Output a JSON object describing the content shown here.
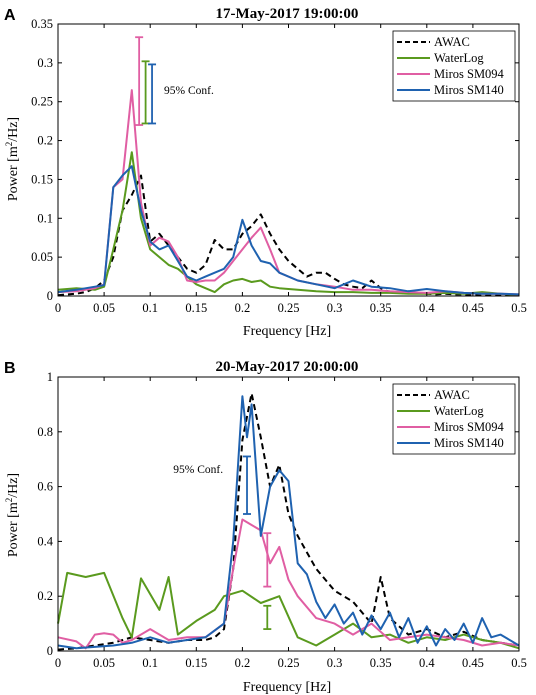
{
  "chart_data": [
    {
      "panel_label": "A",
      "type": "line",
      "title": "17-May-2017 19:00:00",
      "xlabel": "Frequency [Hz]",
      "ylabel_main": "Power [m",
      "ylabel_sup": "2",
      "ylabel_end": "/Hz]",
      "xlim": [
        0,
        0.5
      ],
      "ylim": [
        0,
        0.35
      ],
      "xticks": [
        "0",
        "0.05",
        "0.1",
        "0.15",
        "0.2",
        "0.25",
        "0.3",
        "0.35",
        "0.4",
        "0.45",
        "0.5"
      ],
      "yticks": [
        "0",
        "0.05",
        "0.1",
        "0.15",
        "0.2",
        "0.25",
        "0.3",
        "0.35"
      ],
      "legend": "top-right",
      "conf_text": "95% Conf.",
      "series": [
        {
          "name": "AWAC",
          "color": "#000000",
          "dash": true,
          "x": [
            0,
            0.01,
            0.02,
            0.03,
            0.04,
            0.05,
            0.06,
            0.07,
            0.08,
            0.09,
            0.1,
            0.11,
            0.12,
            0.13,
            0.14,
            0.15,
            0.16,
            0.17,
            0.18,
            0.19,
            0.2,
            0.21,
            0.22,
            0.23,
            0.24,
            0.25,
            0.26,
            0.27,
            0.28,
            0.29,
            0.3,
            0.31,
            0.32,
            0.33,
            0.34,
            0.35,
            0.36,
            0.37,
            0.38,
            0.39,
            0.4,
            0.41,
            0.42,
            0.43,
            0.44,
            0.45,
            0.46,
            0.47,
            0.48,
            0.49,
            0.5
          ],
          "y": [
            0.001,
            0.002,
            0.003,
            0.005,
            0.01,
            0.02,
            0.05,
            0.11,
            0.13,
            0.155,
            0.07,
            0.08,
            0.065,
            0.05,
            0.035,
            0.03,
            0.04,
            0.072,
            0.06,
            0.06,
            0.08,
            0.09,
            0.105,
            0.08,
            0.06,
            0.045,
            0.035,
            0.025,
            0.03,
            0.03,
            0.022,
            0.015,
            0.012,
            0.01,
            0.02,
            0.01,
            0.005,
            0.004,
            0.006,
            0.004,
            0.003,
            0.002,
            0.003,
            0.002,
            0.002,
            0.001,
            0.002,
            0.001,
            0.001,
            0.001,
            0.001
          ]
        },
        {
          "name": "WaterLog",
          "color": "#5a9a1e",
          "dash": false,
          "x": [
            0,
            0.02,
            0.04,
            0.05,
            0.06,
            0.07,
            0.08,
            0.09,
            0.1,
            0.11,
            0.12,
            0.13,
            0.14,
            0.15,
            0.16,
            0.17,
            0.18,
            0.19,
            0.2,
            0.21,
            0.22,
            0.23,
            0.24,
            0.26,
            0.28,
            0.3,
            0.32,
            0.34,
            0.36,
            0.38,
            0.4,
            0.42,
            0.44,
            0.46,
            0.48,
            0.5
          ],
          "y": [
            0.008,
            0.01,
            0.008,
            0.012,
            0.06,
            0.11,
            0.185,
            0.1,
            0.06,
            0.05,
            0.04,
            0.035,
            0.025,
            0.015,
            0.01,
            0.005,
            0.015,
            0.02,
            0.022,
            0.018,
            0.02,
            0.012,
            0.01,
            0.008,
            0.006,
            0.005,
            0.005,
            0.004,
            0.004,
            0.003,
            0.003,
            0.004,
            0.003,
            0.005,
            0.003,
            0.001
          ]
        },
        {
          "name": "Miros SM094",
          "color": "#e05ea3",
          "dash": false,
          "x": [
            0,
            0.02,
            0.04,
            0.05,
            0.06,
            0.07,
            0.08,
            0.09,
            0.1,
            0.11,
            0.12,
            0.13,
            0.14,
            0.15,
            0.16,
            0.17,
            0.18,
            0.19,
            0.2,
            0.21,
            0.22,
            0.23,
            0.24,
            0.26,
            0.28,
            0.3,
            0.32,
            0.34,
            0.36,
            0.38,
            0.4,
            0.42,
            0.44,
            0.46,
            0.48,
            0.5
          ],
          "y": [
            0.005,
            0.006,
            0.01,
            0.015,
            0.14,
            0.15,
            0.265,
            0.12,
            0.065,
            0.075,
            0.07,
            0.05,
            0.02,
            0.018,
            0.02,
            0.02,
            0.03,
            0.045,
            0.06,
            0.075,
            0.088,
            0.06,
            0.03,
            0.02,
            0.015,
            0.012,
            0.008,
            0.008,
            0.006,
            0.005,
            0.004,
            0.006,
            0.004,
            0.003,
            0.003,
            0.002
          ]
        },
        {
          "name": "Miros SM140",
          "color": "#1f62b0",
          "dash": false,
          "x": [
            0,
            0.02,
            0.04,
            0.05,
            0.06,
            0.07,
            0.08,
            0.09,
            0.1,
            0.11,
            0.12,
            0.13,
            0.14,
            0.15,
            0.16,
            0.17,
            0.18,
            0.19,
            0.2,
            0.21,
            0.22,
            0.23,
            0.24,
            0.26,
            0.28,
            0.3,
            0.32,
            0.34,
            0.36,
            0.38,
            0.4,
            0.42,
            0.44,
            0.46,
            0.48,
            0.5
          ],
          "y": [
            0.005,
            0.008,
            0.012,
            0.014,
            0.14,
            0.155,
            0.167,
            0.11,
            0.07,
            0.06,
            0.065,
            0.045,
            0.025,
            0.02,
            0.025,
            0.03,
            0.035,
            0.05,
            0.098,
            0.065,
            0.045,
            0.042,
            0.03,
            0.02,
            0.015,
            0.01,
            0.02,
            0.012,
            0.01,
            0.006,
            0.009,
            0.006,
            0.004,
            0.003,
            0.003,
            0.002
          ]
        }
      ],
      "error_bars": [
        {
          "color": "#e05ea3",
          "x": 0.088,
          "low": 0.22,
          "high": 0.333
        },
        {
          "color": "#5a9a1e",
          "x": 0.095,
          "low": 0.222,
          "high": 0.302
        },
        {
          "color": "#1f62b0",
          "x": 0.102,
          "low": 0.222,
          "high": 0.298
        }
      ],
      "conf_pos": {
        "x": 0.115,
        "y": 0.26
      }
    },
    {
      "panel_label": "B",
      "type": "line",
      "title": "20-May-2017 20:00:00",
      "xlabel": "Frequency [Hz]",
      "ylabel_main": "Power [m",
      "ylabel_sup": "2",
      "ylabel_end": "/Hz]",
      "xlim": [
        0,
        0.5
      ],
      "ylim": [
        0,
        1
      ],
      "xticks": [
        "0",
        "0.05",
        "0.1",
        "0.15",
        "0.2",
        "0.25",
        "0.3",
        "0.35",
        "0.4",
        "0.45",
        "0.5"
      ],
      "yticks": [
        "0",
        "0.2",
        "0.4",
        "0.6",
        "0.8",
        "1"
      ],
      "legend": "top-right",
      "conf_text": "95% Conf.",
      "series": [
        {
          "name": "AWAC",
          "color": "#000000",
          "dash": true,
          "x": [
            0,
            0.02,
            0.04,
            0.06,
            0.08,
            0.1,
            0.12,
            0.14,
            0.16,
            0.17,
            0.18,
            0.19,
            0.2,
            0.21,
            0.22,
            0.23,
            0.24,
            0.25,
            0.26,
            0.27,
            0.28,
            0.3,
            0.32,
            0.34,
            0.35,
            0.36,
            0.38,
            0.4,
            0.42,
            0.44,
            0.46,
            0.48,
            0.5
          ],
          "y": [
            0.005,
            0.01,
            0.02,
            0.03,
            0.05,
            0.04,
            0.03,
            0.04,
            0.04,
            0.05,
            0.08,
            0.3,
            0.77,
            0.94,
            0.78,
            0.6,
            0.68,
            0.5,
            0.42,
            0.36,
            0.3,
            0.22,
            0.18,
            0.1,
            0.27,
            0.12,
            0.06,
            0.08,
            0.05,
            0.07,
            0.04,
            0.03,
            0.02
          ]
        },
        {
          "name": "WaterLog",
          "color": "#5a9a1e",
          "dash": false,
          "x": [
            0,
            0.01,
            0.03,
            0.05,
            0.07,
            0.08,
            0.09,
            0.11,
            0.12,
            0.13,
            0.15,
            0.16,
            0.17,
            0.18,
            0.2,
            0.22,
            0.24,
            0.26,
            0.28,
            0.3,
            0.32,
            0.34,
            0.36,
            0.38,
            0.4,
            0.42,
            0.44,
            0.46,
            0.48,
            0.5
          ],
          "y": [
            0.1,
            0.285,
            0.27,
            0.285,
            0.12,
            0.05,
            0.265,
            0.15,
            0.27,
            0.06,
            0.11,
            0.13,
            0.15,
            0.2,
            0.22,
            0.175,
            0.2,
            0.05,
            0.02,
            0.06,
            0.1,
            0.05,
            0.06,
            0.03,
            0.05,
            0.04,
            0.06,
            0.04,
            0.03,
            0.01
          ]
        },
        {
          "name": "Miros SM094",
          "color": "#e05ea3",
          "dash": false,
          "x": [
            0,
            0.02,
            0.03,
            0.04,
            0.05,
            0.06,
            0.07,
            0.08,
            0.1,
            0.12,
            0.14,
            0.16,
            0.18,
            0.19,
            0.2,
            0.21,
            0.22,
            0.23,
            0.24,
            0.25,
            0.26,
            0.28,
            0.3,
            0.32,
            0.34,
            0.36,
            0.38,
            0.4,
            0.42,
            0.44,
            0.46,
            0.48,
            0.5
          ],
          "y": [
            0.05,
            0.035,
            0.01,
            0.06,
            0.065,
            0.06,
            0.03,
            0.04,
            0.08,
            0.04,
            0.05,
            0.05,
            0.1,
            0.3,
            0.48,
            0.46,
            0.44,
            0.32,
            0.38,
            0.26,
            0.2,
            0.12,
            0.1,
            0.06,
            0.1,
            0.04,
            0.05,
            0.06,
            0.05,
            0.04,
            0.02,
            0.03,
            0.02
          ]
        },
        {
          "name": "Miros SM140",
          "color": "#1f62b0",
          "dash": false,
          "x": [
            0,
            0.02,
            0.04,
            0.06,
            0.08,
            0.1,
            0.12,
            0.14,
            0.16,
            0.18,
            0.19,
            0.2,
            0.205,
            0.21,
            0.22,
            0.23,
            0.24,
            0.25,
            0.26,
            0.27,
            0.28,
            0.29,
            0.3,
            0.31,
            0.32,
            0.33,
            0.34,
            0.35,
            0.36,
            0.37,
            0.38,
            0.39,
            0.4,
            0.41,
            0.42,
            0.43,
            0.44,
            0.45,
            0.46,
            0.47,
            0.48,
            0.5
          ],
          "y": [
            0.02,
            0.01,
            0.015,
            0.02,
            0.03,
            0.05,
            0.03,
            0.04,
            0.05,
            0.1,
            0.4,
            0.93,
            0.78,
            0.9,
            0.42,
            0.6,
            0.66,
            0.62,
            0.32,
            0.28,
            0.18,
            0.12,
            0.17,
            0.1,
            0.14,
            0.06,
            0.13,
            0.08,
            0.14,
            0.05,
            0.12,
            0.03,
            0.09,
            0.02,
            0.08,
            0.04,
            0.1,
            0.03,
            0.12,
            0.05,
            0.06,
            0.02
          ]
        }
      ],
      "error_bars": [
        {
          "color": "#1f62b0",
          "x": 0.205,
          "low": 0.5,
          "high": 0.71
        },
        {
          "color": "#e05ea3",
          "x": 0.227,
          "low": 0.235,
          "high": 0.43
        },
        {
          "color": "#5a9a1e",
          "x": 0.227,
          "low": 0.08,
          "high": 0.165
        }
      ],
      "conf_pos": {
        "x": 0.125,
        "y": 0.65
      }
    }
  ]
}
